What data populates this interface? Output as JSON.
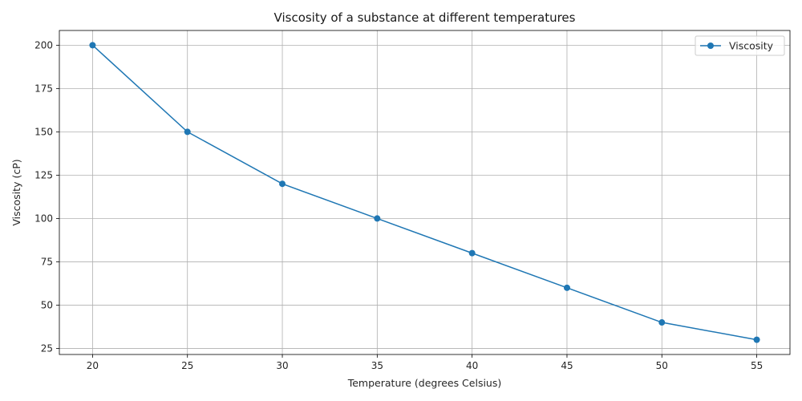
{
  "chart_data": {
    "type": "line",
    "title": "Viscosity of a substance at different temperatures",
    "xlabel": "Temperature (degrees Celsius)",
    "ylabel": "Viscosity (cP)",
    "x": [
      20,
      25,
      30,
      35,
      40,
      45,
      50,
      55
    ],
    "series": [
      {
        "name": "Viscosity",
        "values": [
          200,
          150,
          120,
          100,
          80,
          60,
          40,
          30
        ],
        "color": "#1f77b4",
        "marker": "circle"
      }
    ],
    "xticks": [
      20,
      25,
      30,
      35,
      40,
      45,
      50,
      55
    ],
    "yticks": [
      25,
      50,
      75,
      100,
      125,
      150,
      175,
      200
    ],
    "xlim": [
      18.25,
      56.75
    ],
    "ylim": [
      21.5,
      208.5
    ],
    "grid": true,
    "legend_position": "top-right"
  }
}
